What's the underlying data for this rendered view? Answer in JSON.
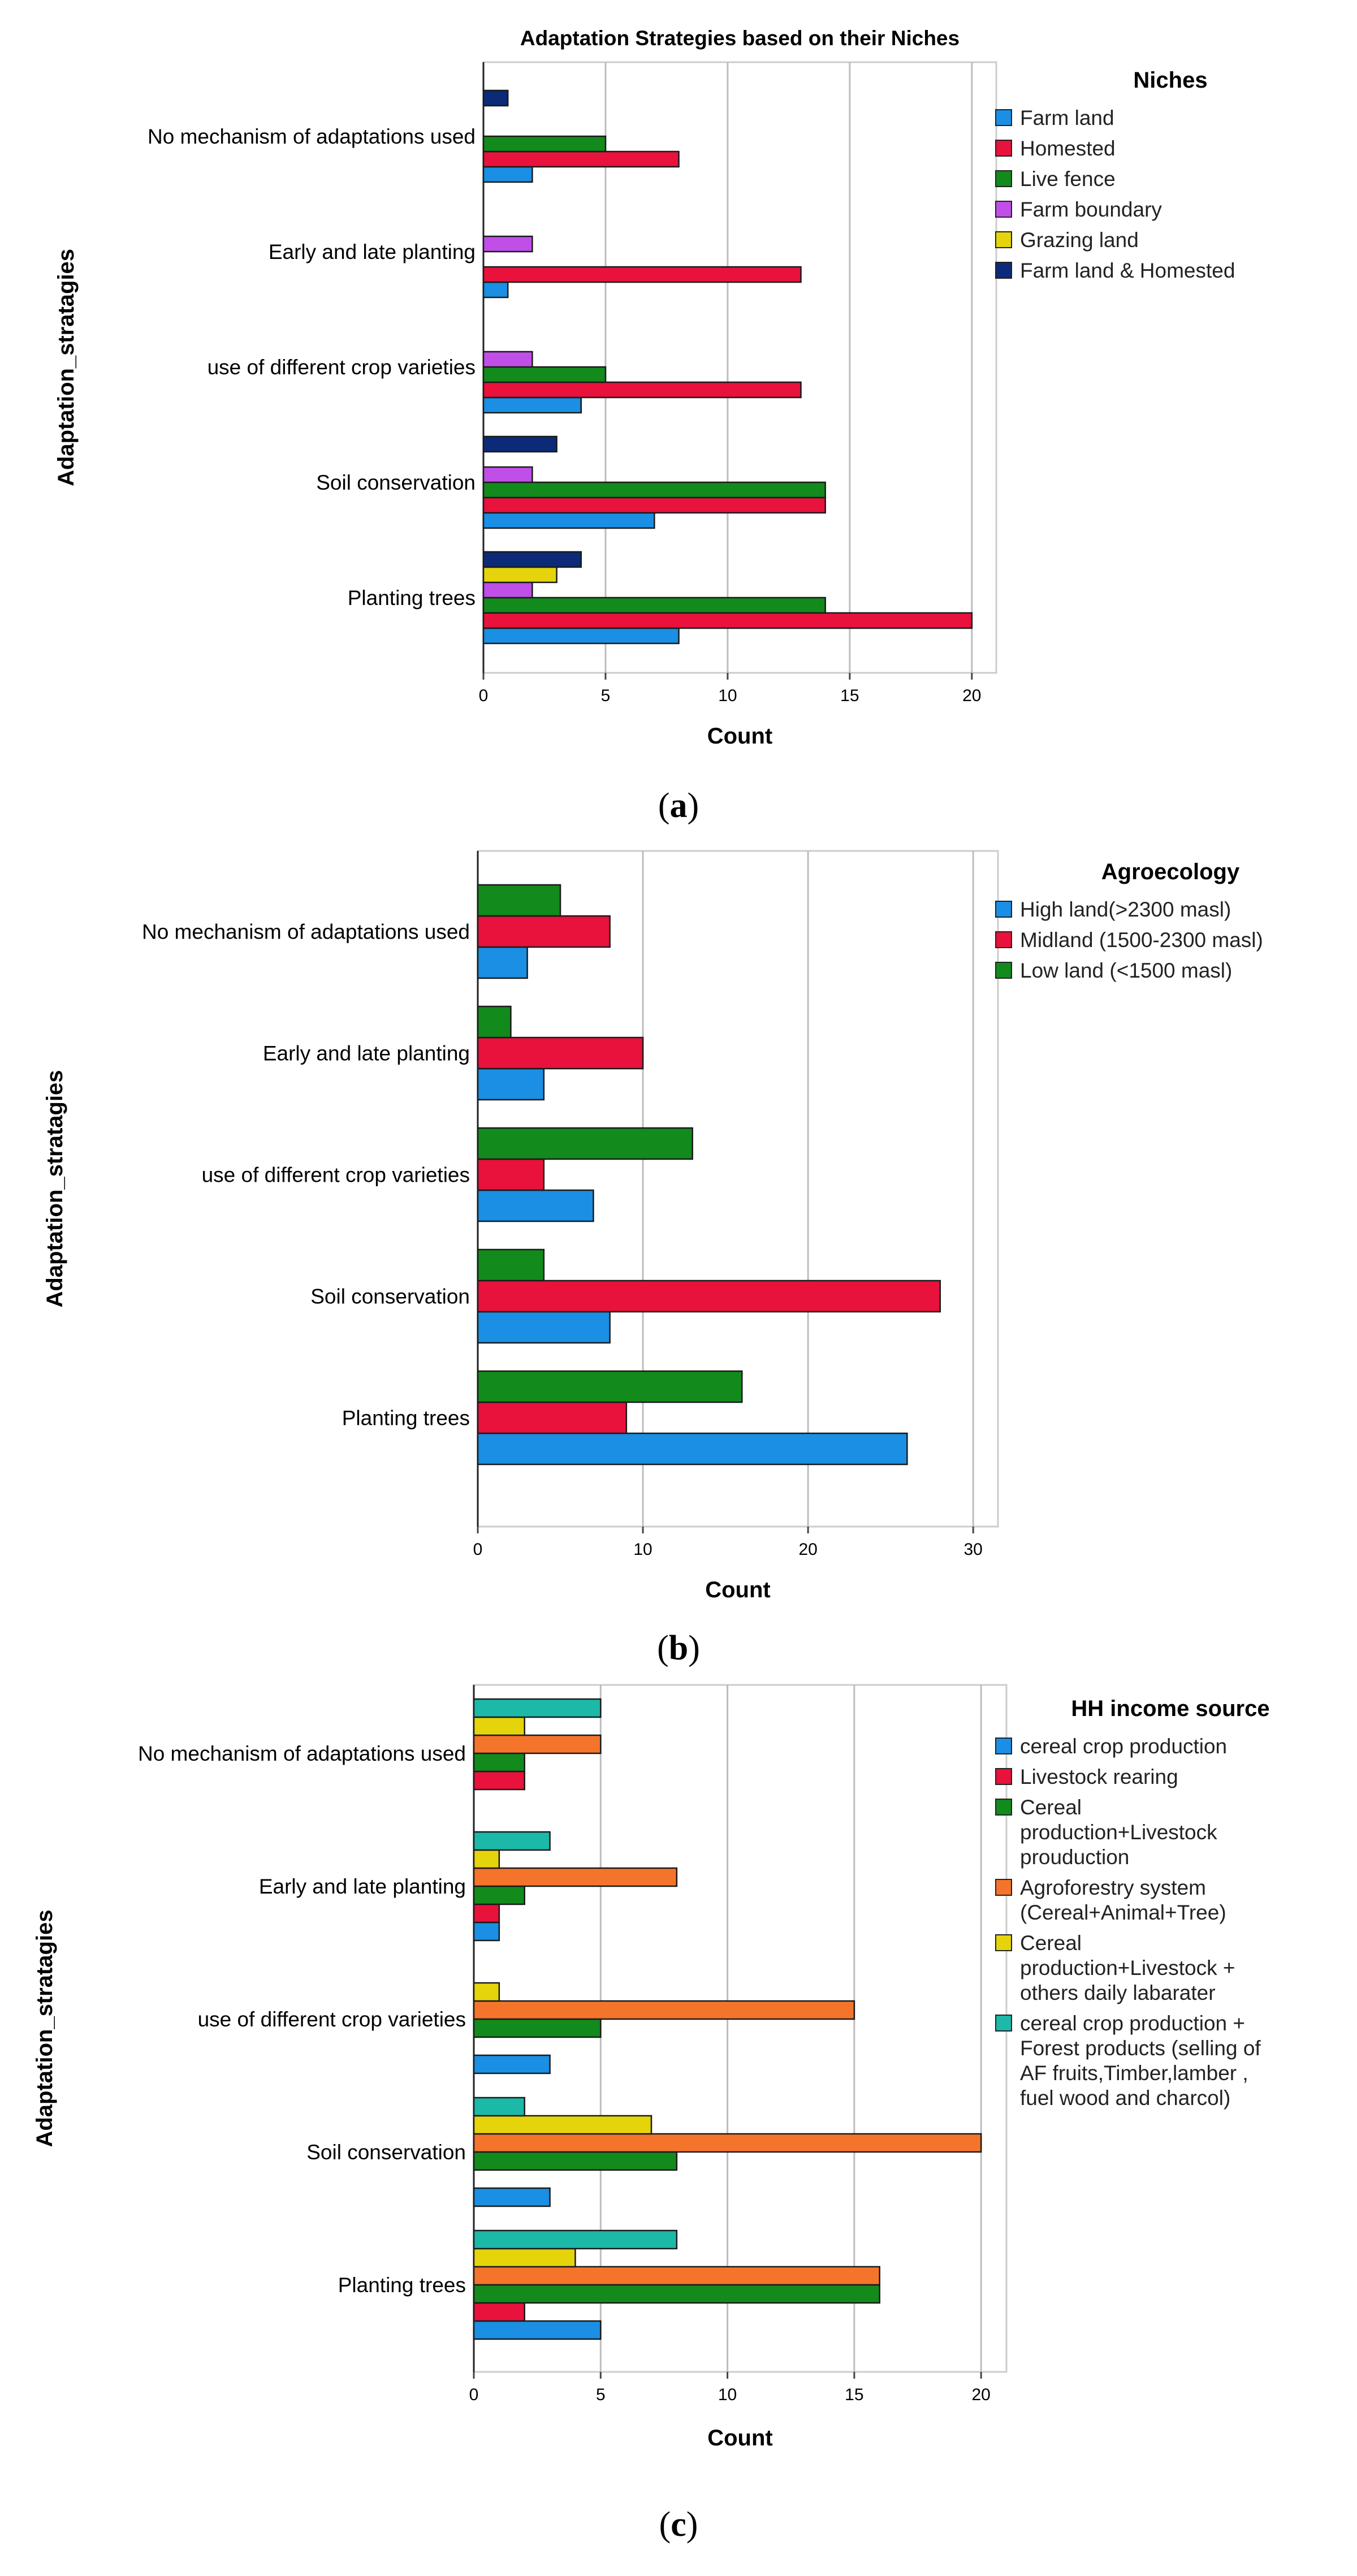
{
  "chart_data": [
    {
      "id": "a",
      "type": "bar",
      "orientation": "horizontal",
      "title": "Adaptation Strategies based on their Niches",
      "xlabel": "Count",
      "ylabel": "Adaptation_stratagies",
      "xlim": [
        0,
        21
      ],
      "ticks": [
        0,
        5,
        10,
        15,
        20
      ],
      "tick_labels": [
        "0",
        "5",
        "10",
        "15",
        "20"
      ],
      "categories": [
        "No mechanism of adaptations used",
        "Early and late planting",
        "use of different crop varieties",
        "Soil conservation",
        "Planting trees"
      ],
      "legend_title": "Niches",
      "legend_position": "right",
      "series": [
        {
          "name": "Farm land",
          "color": "#1a8fe3",
          "values": [
            2,
            1,
            4,
            7,
            8
          ]
        },
        {
          "name": "Homested",
          "color": "#e8123c",
          "values": [
            8,
            13,
            13,
            14,
            20
          ]
        },
        {
          "name": "Live fence",
          "color": "#138a1c",
          "values": [
            5,
            null,
            5,
            14,
            14
          ]
        },
        {
          "name": "Farm boundary",
          "color": "#c04fe8",
          "values": [
            null,
            2,
            2,
            2,
            2
          ]
        },
        {
          "name": "Grazing land",
          "color": "#e5d40b",
          "values": [
            null,
            null,
            null,
            null,
            3
          ]
        },
        {
          "name": "Farm land & Homested",
          "color": "#0b2a78",
          "values": [
            1,
            null,
            null,
            3,
            4
          ]
        }
      ],
      "caption_letter": "a"
    },
    {
      "id": "b",
      "type": "bar",
      "orientation": "horizontal",
      "title": "",
      "xlabel": "Count",
      "ylabel": "Adaptation_stratagies",
      "xlim": [
        0,
        31.5
      ],
      "ticks": [
        0,
        10,
        20,
        30
      ],
      "tick_labels": [
        "0",
        "10",
        "20",
        "30"
      ],
      "categories": [
        "No mechanism of adaptations used",
        "Early and late planting",
        "use of different crop varieties",
        "Soil conservation",
        "Planting trees"
      ],
      "legend_title": "Agroecology",
      "legend_position": "right",
      "series": [
        {
          "name": "High land(>2300 masl)",
          "color": "#1a8fe3",
          "values": [
            3,
            4,
            7,
            8,
            26
          ]
        },
        {
          "name": "Midland (1500-2300 masl)",
          "color": "#e8123c",
          "values": [
            8,
            10,
            4,
            28,
            9
          ]
        },
        {
          "name": "Low land (<1500 masl)",
          "color": "#138a1c",
          "values": [
            5,
            2,
            13,
            4,
            16
          ]
        }
      ],
      "caption_letter": "b"
    },
    {
      "id": "c",
      "type": "bar",
      "orientation": "horizontal",
      "title": "",
      "xlabel": "Count",
      "ylabel": "Adaptation_stratagies",
      "xlim": [
        0,
        21
      ],
      "ticks": [
        0,
        5,
        10,
        15,
        20
      ],
      "tick_labels": [
        "0",
        "5",
        "10",
        "15",
        "20"
      ],
      "categories": [
        "No mechanism of adaptations used",
        "Early and late planting",
        "use of different crop varieties",
        "Soil conservation",
        "Planting trees"
      ],
      "legend_title": "HH income source",
      "legend_position": "right",
      "series": [
        {
          "name": "cereal crop production",
          "color": "#1a8fe3",
          "values": [
            null,
            1,
            3,
            3,
            5
          ]
        },
        {
          "name": "Livestock rearing",
          "color": "#e8123c",
          "values": [
            2,
            1,
            null,
            null,
            2
          ]
        },
        {
          "name": "Cereal\nproduction+Livestock\nprouduction",
          "color": "#138a1c",
          "values": [
            2,
            2,
            5,
            8,
            16
          ]
        },
        {
          "name": "Agroforestry system\n(Cereal+Animal+Tree)",
          "color": "#f5742b",
          "values": [
            5,
            8,
            15,
            20,
            16
          ]
        },
        {
          "name": "Cereal\nproduction+Livestock +\nothers daily labarater",
          "color": "#e5d40b",
          "values": [
            2,
            1,
            1,
            7,
            4
          ]
        },
        {
          "name": "cereal crop production +\nForest products (selling of\nAF fruits,Timber,lamber ,\nfuel wood and charcol)",
          "color": "#1cb8a8",
          "values": [
            5,
            3,
            null,
            2,
            8
          ]
        }
      ],
      "caption_letter": "c"
    }
  ]
}
